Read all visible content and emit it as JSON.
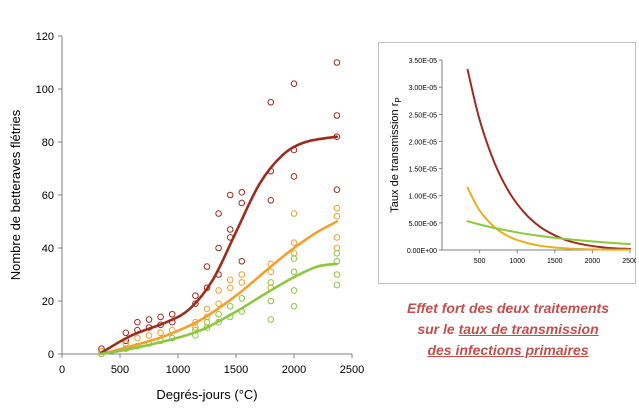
{
  "chart_data": [
    {
      "type": "scatter",
      "xlabel": "Degrés-jours (°C)",
      "ylabel": "Nombre de betteraves flétries",
      "xlim": [
        0,
        2500
      ],
      "ylim": [
        0,
        120
      ],
      "xticks": [
        0,
        500,
        1000,
        1500,
        2000,
        2500
      ],
      "yticks": [
        0,
        20,
        40,
        60,
        80,
        100,
        120
      ],
      "grid": false,
      "legend": "none",
      "series": [
        {
          "color": "#9b2d1f",
          "points": [
            [
              340,
              2
            ],
            [
              340,
              1
            ],
            [
              550,
              8
            ],
            [
              550,
              5
            ],
            [
              650,
              12
            ],
            [
              650,
              9
            ],
            [
              750,
              13
            ],
            [
              750,
              10
            ],
            [
              850,
              14
            ],
            [
              850,
              11
            ],
            [
              950,
              15
            ],
            [
              950,
              12
            ],
            [
              1150,
              22
            ],
            [
              1150,
              19
            ],
            [
              1250,
              33
            ],
            [
              1250,
              25
            ],
            [
              1350,
              53
            ],
            [
              1350,
              40
            ],
            [
              1350,
              30
            ],
            [
              1450,
              60
            ],
            [
              1450,
              47
            ],
            [
              1450,
              44
            ],
            [
              1550,
              61
            ],
            [
              1550,
              57
            ],
            [
              1550,
              35
            ],
            [
              1800,
              95
            ],
            [
              1800,
              69
            ],
            [
              1800,
              58
            ],
            [
              2000,
              102
            ],
            [
              2000,
              77
            ],
            [
              2000,
              67
            ],
            [
              2370,
              110
            ],
            [
              2370,
              90
            ],
            [
              2370,
              82
            ],
            [
              2370,
              62
            ]
          ],
          "fit": [
            [
              340,
              0.5
            ],
            [
              600,
              7
            ],
            [
              900,
              12
            ],
            [
              1100,
              17
            ],
            [
              1300,
              28
            ],
            [
              1500,
              46
            ],
            [
              1700,
              64
            ],
            [
              1900,
              75
            ],
            [
              2100,
              80
            ],
            [
              2370,
              82
            ]
          ]
        },
        {
          "color": "#f0a030",
          "points": [
            [
              340,
              1
            ],
            [
              550,
              4
            ],
            [
              650,
              6
            ],
            [
              750,
              7
            ],
            [
              850,
              8
            ],
            [
              950,
              9
            ],
            [
              1150,
              12
            ],
            [
              1150,
              10
            ],
            [
              1250,
              17
            ],
            [
              1250,
              14
            ],
            [
              1350,
              24
            ],
            [
              1350,
              19
            ],
            [
              1450,
              28
            ],
            [
              1450,
              25
            ],
            [
              1550,
              30
            ],
            [
              1550,
              27
            ],
            [
              1800,
              34
            ],
            [
              1800,
              31
            ],
            [
              1800,
              25
            ],
            [
              2000,
              53
            ],
            [
              2000,
              42
            ],
            [
              2000,
              38
            ],
            [
              2370,
              55
            ],
            [
              2370,
              52
            ],
            [
              2370,
              44
            ],
            [
              2370,
              40
            ]
          ],
          "fit": [
            [
              340,
              0
            ],
            [
              600,
              3
            ],
            [
              900,
              7
            ],
            [
              1200,
              13
            ],
            [
              1500,
              22
            ],
            [
              1800,
              33
            ],
            [
              2000,
              40
            ],
            [
              2200,
              46
            ],
            [
              2370,
              50
            ]
          ]
        },
        {
          "color": "#8dc63f",
          "points": [
            [
              340,
              0
            ],
            [
              550,
              2
            ],
            [
              650,
              3
            ],
            [
              750,
              4
            ],
            [
              850,
              5
            ],
            [
              950,
              6
            ],
            [
              1150,
              9
            ],
            [
              1150,
              7
            ],
            [
              1250,
              12
            ],
            [
              1250,
              10
            ],
            [
              1350,
              15
            ],
            [
              1350,
              12
            ],
            [
              1450,
              18
            ],
            [
              1450,
              14
            ],
            [
              1550,
              21
            ],
            [
              1550,
              16
            ],
            [
              1800,
              27
            ],
            [
              1800,
              20
            ],
            [
              1800,
              13
            ],
            [
              2000,
              36
            ],
            [
              2000,
              31
            ],
            [
              2000,
              24
            ],
            [
              2000,
              18
            ],
            [
              2370,
              38
            ],
            [
              2370,
              35
            ],
            [
              2370,
              30
            ],
            [
              2370,
              26
            ]
          ],
          "fit": [
            [
              340,
              0
            ],
            [
              600,
              2
            ],
            [
              900,
              5
            ],
            [
              1200,
              9
            ],
            [
              1500,
              16
            ],
            [
              1800,
              24
            ],
            [
              2000,
              29
            ],
            [
              2200,
              33
            ],
            [
              2370,
              34
            ]
          ]
        }
      ]
    },
    {
      "type": "line",
      "ylabel": "Taux de transmission r",
      "ylabel_sub": "P",
      "xlim": [
        0,
        2500
      ],
      "ylim": [
        0,
        3.5e-05
      ],
      "xticks": [
        "500",
        "1000",
        "1500",
        "2000",
        "2500"
      ],
      "yticks": [
        "0.00E+00",
        "5.00E-06",
        "1.00E-05",
        "1.50E-05",
        "2.00E-05",
        "2.50E-05",
        "3.00E-05",
        "3.50E-05"
      ],
      "series": [
        {
          "color": "#9b2d1f",
          "x": [
            340,
            500,
            700,
            900,
            1100,
            1300,
            1500,
            1700,
            1900,
            2100,
            2300,
            2500
          ],
          "y": [
            3.32e-05,
            2.4e-05,
            1.6e-05,
            1.05e-05,
            6.8e-06,
            4.3e-06,
            2.7e-06,
            1.6e-06,
            9.5e-07,
            5.5e-07,
            3e-07,
            2e-07
          ]
        },
        {
          "color": "#e8b020",
          "x": [
            340,
            500,
            700,
            900,
            1100,
            1300,
            1500,
            1700,
            1900,
            2100,
            2300,
            2500
          ],
          "y": [
            1.15e-05,
            7.3e-06,
            4.2e-06,
            2.4e-06,
            1.4e-06,
            8e-07,
            4.6e-07,
            2.6e-07,
            1.5e-07,
            9e-08,
            5e-08,
            3e-08
          ]
        },
        {
          "color": "#8dc63f",
          "x": [
            340,
            500,
            700,
            900,
            1100,
            1300,
            1500,
            1700,
            1900,
            2100,
            2300,
            2500
          ],
          "y": [
            5.3e-06,
            4.7e-06,
            4.05e-06,
            3.5e-06,
            3e-06,
            2.6e-06,
            2.25e-06,
            1.95e-06,
            1.7e-06,
            1.47e-06,
            1.28e-06,
            1.1e-06
          ]
        }
      ]
    }
  ],
  "caption": {
    "line1": "Effet fort des deux traitements",
    "line2_prefix": "sur le ",
    "line2_underlined": "taux de transmission",
    "line3": "des infections primaires"
  }
}
